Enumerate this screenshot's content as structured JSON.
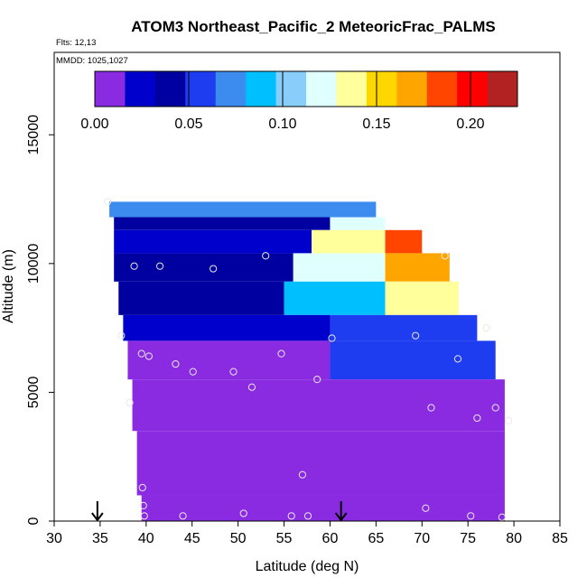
{
  "chart_data": {
    "type": "heatmap",
    "title": "ATOM3 Northeast_Pacific_2 MeteoricFrac_PALMS",
    "flights_note": "Flts: 12,13",
    "dates_note": "MMDD: 1025,1027",
    "xlabel": "Latitude (deg N)",
    "ylabel": "Altitude (m)",
    "xlim": [
      30,
      85
    ],
    "ylim": [
      0,
      18200
    ],
    "x_ticks": [
      "30",
      "35",
      "40",
      "45",
      "50",
      "55",
      "60",
      "65",
      "70",
      "75",
      "80",
      "85"
    ],
    "y_ticks": [
      "0",
      "5000",
      "10000",
      "15000"
    ],
    "colorbar": {
      "range": [
        0,
        0.225
      ],
      "tick_labels": [
        "0.00",
        "0.05",
        "0.10",
        "0.15",
        "0.20"
      ],
      "colors": [
        "#8a2be2",
        "#0000cd",
        "#0000a0",
        "#1e3cf0",
        "#3c8cf0",
        "#00bfff",
        "#87cefa",
        "#e0ffff",
        "#ffff9c",
        "#ffd700",
        "#ffa500",
        "#ff4500",
        "#ff0000",
        "#b22222"
      ]
    },
    "grid_cells": [
      {
        "lat": [
          36,
          65
        ],
        "alt": [
          11800,
          12400
        ],
        "value": 0.08
      },
      {
        "lat": [
          36.5,
          60
        ],
        "alt": [
          11300,
          11800
        ],
        "value": 0.04
      },
      {
        "lat": [
          60,
          66
        ],
        "alt": [
          11300,
          11800
        ],
        "value": 0.12
      },
      {
        "lat": [
          36.5,
          58
        ],
        "alt": [
          10400,
          11300
        ],
        "value": 0.03
      },
      {
        "lat": [
          58,
          66
        ],
        "alt": [
          10400,
          11300
        ],
        "value": 0.14
      },
      {
        "lat": [
          66,
          70
        ],
        "alt": [
          10400,
          11300
        ],
        "value": 0.19
      },
      {
        "lat": [
          36.5,
          56
        ],
        "alt": [
          9300,
          10400
        ],
        "value": 0.04
      },
      {
        "lat": [
          56,
          66
        ],
        "alt": [
          9300,
          10400
        ],
        "value": 0.12
      },
      {
        "lat": [
          66,
          73
        ],
        "alt": [
          9300,
          10400
        ],
        "value": 0.17
      },
      {
        "lat": [
          37,
          55
        ],
        "alt": [
          8000,
          9300
        ],
        "value": 0.035
      },
      {
        "lat": [
          55,
          66
        ],
        "alt": [
          8000,
          9300
        ],
        "value": 0.09
      },
      {
        "lat": [
          66,
          74
        ],
        "alt": [
          8000,
          9300
        ],
        "value": 0.14
      },
      {
        "lat": [
          37.5,
          60
        ],
        "alt": [
          7000,
          8000
        ],
        "value": 0.03
      },
      {
        "lat": [
          60,
          76
        ],
        "alt": [
          7000,
          8000
        ],
        "value": 0.06
      },
      {
        "lat": [
          38,
          60
        ],
        "alt": [
          5500,
          7000
        ],
        "value": 0.01
      },
      {
        "lat": [
          60,
          78
        ],
        "alt": [
          5500,
          7000
        ],
        "value": 0.05
      },
      {
        "lat": [
          38.5,
          79
        ],
        "alt": [
          3500,
          5500
        ],
        "value": 0.015
      },
      {
        "lat": [
          39,
          79
        ],
        "alt": [
          1000,
          3500
        ],
        "value": 0.012
      },
      {
        "lat": [
          39.5,
          79
        ],
        "alt": [
          0,
          1000
        ],
        "value": 0.005
      }
    ],
    "sample_points": [
      {
        "lat": 35.8,
        "alt": 12400
      },
      {
        "lat": 38.7,
        "alt": 9900
      },
      {
        "lat": 41.5,
        "alt": 9900
      },
      {
        "lat": 47.3,
        "alt": 9800
      },
      {
        "lat": 53,
        "alt": 10300
      },
      {
        "lat": 72.5,
        "alt": 10300
      },
      {
        "lat": 37.3,
        "alt": 7200
      },
      {
        "lat": 39.5,
        "alt": 6500
      },
      {
        "lat": 40.3,
        "alt": 6400
      },
      {
        "lat": 43.2,
        "alt": 6100
      },
      {
        "lat": 45.1,
        "alt": 5800
      },
      {
        "lat": 49.5,
        "alt": 5800
      },
      {
        "lat": 54.7,
        "alt": 6500
      },
      {
        "lat": 60.2,
        "alt": 7100
      },
      {
        "lat": 69.3,
        "alt": 7200
      },
      {
        "lat": 73.9,
        "alt": 6300
      },
      {
        "lat": 77,
        "alt": 7500
      },
      {
        "lat": 51.5,
        "alt": 5200
      },
      {
        "lat": 58.6,
        "alt": 5500
      },
      {
        "lat": 38.2,
        "alt": 4600
      },
      {
        "lat": 71,
        "alt": 4400
      },
      {
        "lat": 76,
        "alt": 4000
      },
      {
        "lat": 78,
        "alt": 4400
      },
      {
        "lat": 79.4,
        "alt": 3900
      },
      {
        "lat": 57,
        "alt": 1800
      },
      {
        "lat": 39.6,
        "alt": 1300
      },
      {
        "lat": 39.7,
        "alt": 600
      },
      {
        "lat": 39.8,
        "alt": 200
      },
      {
        "lat": 44,
        "alt": 200
      },
      {
        "lat": 50.6,
        "alt": 300
      },
      {
        "lat": 55.8,
        "alt": 200
      },
      {
        "lat": 57.6,
        "alt": 200
      },
      {
        "lat": 70.4,
        "alt": 500
      },
      {
        "lat": 75.3,
        "alt": 200
      },
      {
        "lat": 78.7,
        "alt": 150
      }
    ],
    "arrows_lat": [
      34.7,
      61.2
    ]
  }
}
